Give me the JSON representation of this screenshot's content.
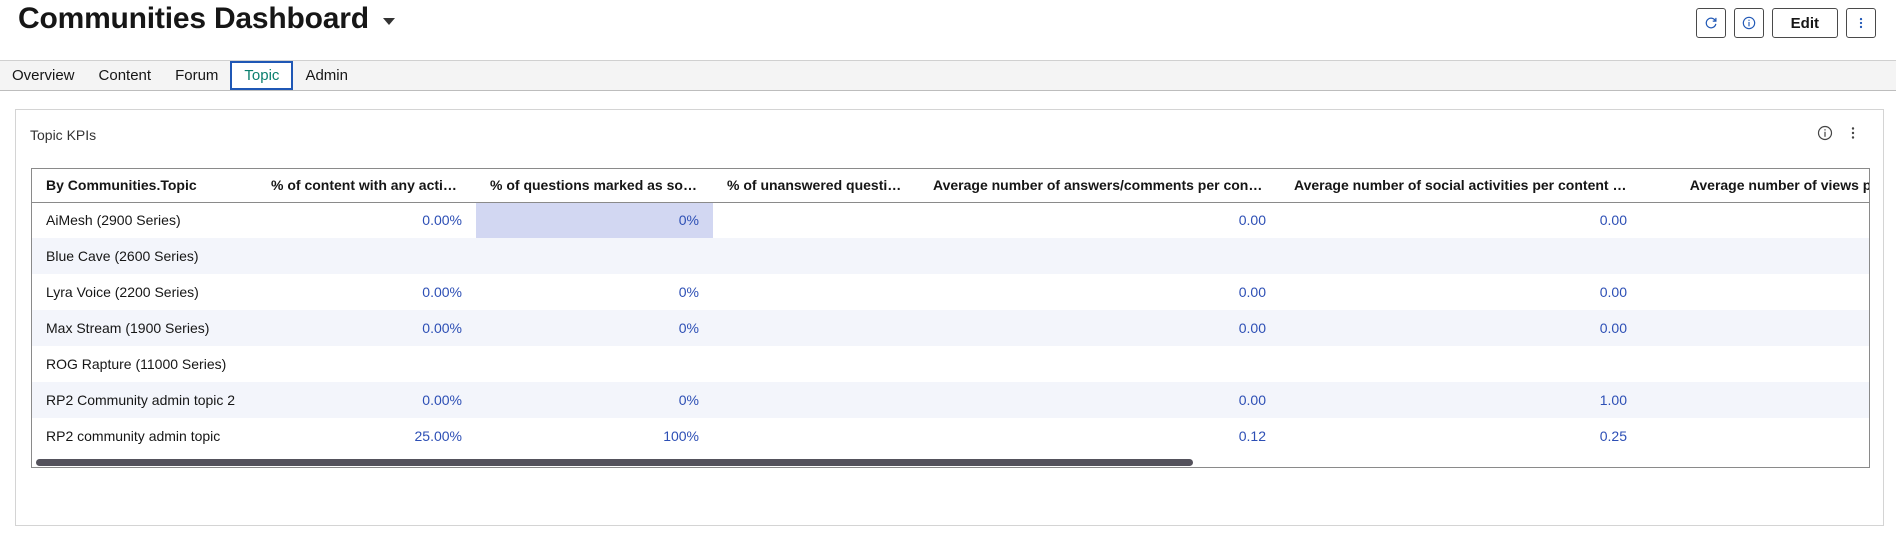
{
  "header": {
    "title": "Communities Dashboard",
    "edit_label": "Edit"
  },
  "tabs": [
    {
      "label": "Overview"
    },
    {
      "label": "Content"
    },
    {
      "label": "Forum"
    },
    {
      "label": "Topic",
      "active": true
    },
    {
      "label": "Admin"
    }
  ],
  "panel": {
    "title": "Topic KPIs"
  },
  "table": {
    "columns": [
      "By Communities.Topic",
      "% of content with any activity",
      "% of questions marked as solved",
      "% of unanswered questions",
      "Average number of answers/comments per conte…",
      "Average number of social activities per content ite…",
      "Average number of views per cont"
    ],
    "rows": [
      [
        "AiMesh (2900 Series)",
        "0.00%",
        "0%",
        "",
        "0.00",
        "0.00",
        ""
      ],
      [
        "Blue Cave (2600 Series)",
        "",
        "",
        "",
        "",
        "",
        ""
      ],
      [
        "Lyra Voice (2200 Series)",
        "0.00%",
        "0%",
        "",
        "0.00",
        "0.00",
        ""
      ],
      [
        "Max Stream (1900 Series)",
        "0.00%",
        "0%",
        "",
        "0.00",
        "0.00",
        ""
      ],
      [
        "ROG Rapture (11000 Series)",
        "",
        "",
        "",
        "",
        "",
        ""
      ],
      [
        "RP2 Community admin topic 2",
        "0.00%",
        "0%",
        "",
        "0.00",
        "1.00",
        ""
      ],
      [
        "RP2 community admin topic",
        "25.00%",
        "100%",
        "",
        "0.12",
        "0.25",
        ""
      ]
    ]
  },
  "icons": {
    "refresh": "refresh-icon",
    "info": "info-icon",
    "more": "more-vertical-icon"
  },
  "colors": {
    "link_value": "#2d4fb5",
    "active_tab_text": "#0a7f6e",
    "active_tab_border": "#1f57b5",
    "highlight_cell": "#d2d7f2"
  }
}
